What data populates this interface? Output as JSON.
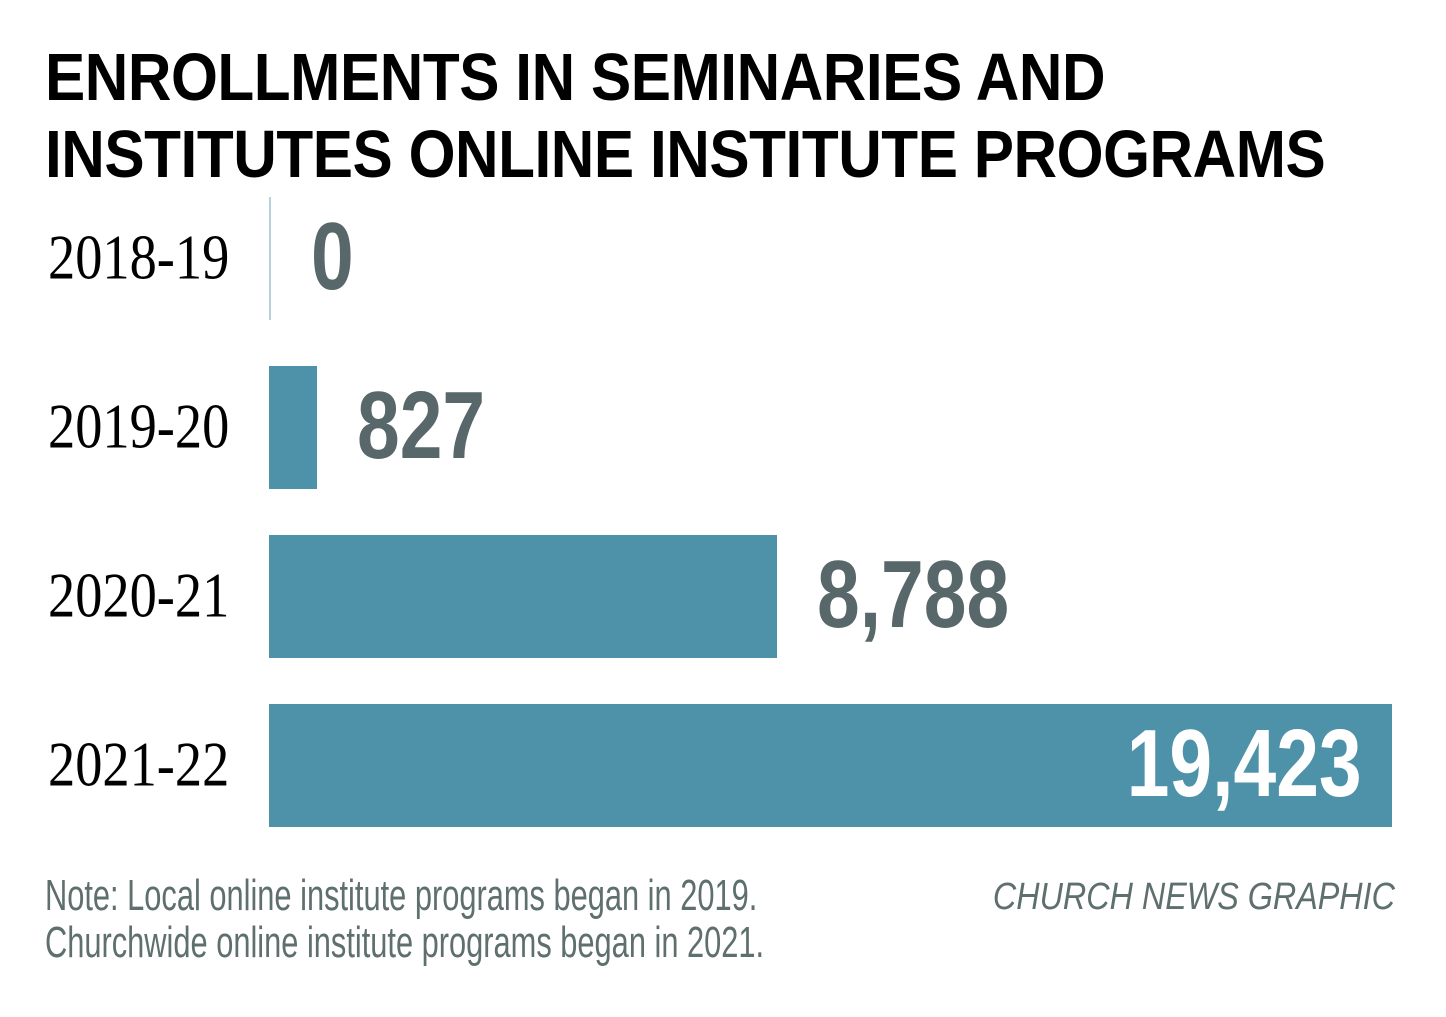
{
  "title": {
    "line1": "ENROLLMENTS IN SEMINARIES AND",
    "line2": "INSTITUTES ONLINE INSTITUTE PROGRAMS"
  },
  "chart_data": {
    "type": "bar",
    "orientation": "horizontal",
    "categories": [
      "2018-19",
      "2019-20",
      "2020-21",
      "2021-22"
    ],
    "values": [
      0,
      827,
      8788,
      19423
    ],
    "value_labels": [
      "0",
      "827",
      "8,788",
      "19,423"
    ],
    "value_label_position": [
      "outside",
      "outside",
      "outside",
      "inside"
    ],
    "xlim": [
      0,
      19423
    ],
    "grid": false,
    "legend": false,
    "bar_color": "#4d92a9",
    "value_color_outside": "#58676a",
    "value_color_inside": "#ffffff",
    "zero_axis_color": "#b7d1dd",
    "title_color": "#000000",
    "note_color": "#5e6f6d"
  },
  "note": {
    "line1": "Note: Local online institute programs began in 2019.",
    "line2": "Churchwide online institute programs began in 2021."
  },
  "attribution": "CHURCH NEWS GRAPHIC"
}
